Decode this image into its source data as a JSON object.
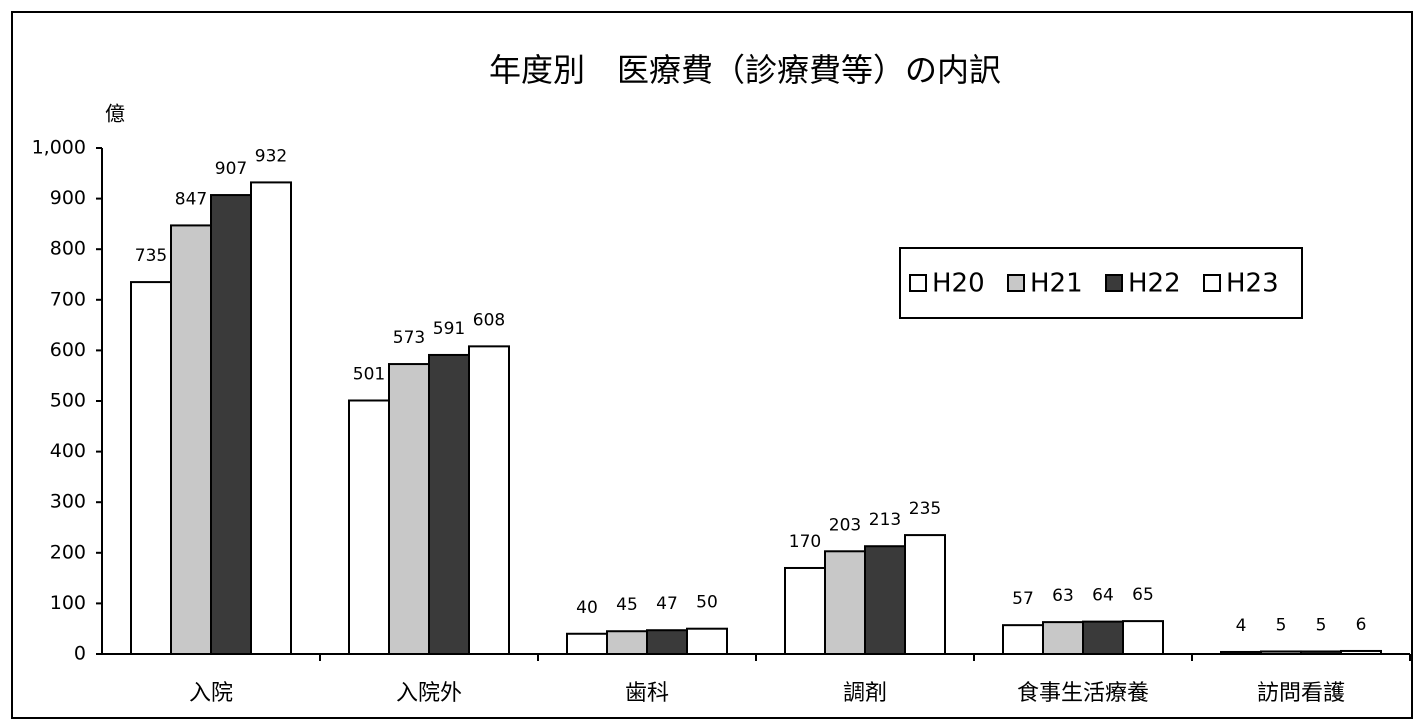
{
  "chart_data": {
    "type": "bar",
    "title": "年度別　医療費（診療費等）の内訳",
    "y_label": "億",
    "categories": [
      "入院",
      "入院外",
      "歯科",
      "調剤",
      "食事生活療養",
      "訪問看護"
    ],
    "series": [
      {
        "name": "H20",
        "color": "#ffffff",
        "values": [
          735,
          501,
          40,
          170,
          57,
          4
        ]
      },
      {
        "name": "H21",
        "color": "#c8c8c8",
        "values": [
          847,
          573,
          45,
          203,
          63,
          5
        ]
      },
      {
        "name": "H22",
        "color": "#3a3a3a",
        "values": [
          907,
          591,
          47,
          213,
          64,
          5
        ]
      },
      {
        "name": "H23",
        "color": "#ffffff",
        "values": [
          932,
          608,
          50,
          235,
          65,
          6
        ]
      }
    ],
    "ylim": [
      0,
      1000
    ],
    "yticks": [
      0,
      100,
      200,
      300,
      400,
      500,
      600,
      700,
      800,
      900,
      {
        "value": 1000,
        "label": "1,000"
      }
    ],
    "legend": "right"
  }
}
